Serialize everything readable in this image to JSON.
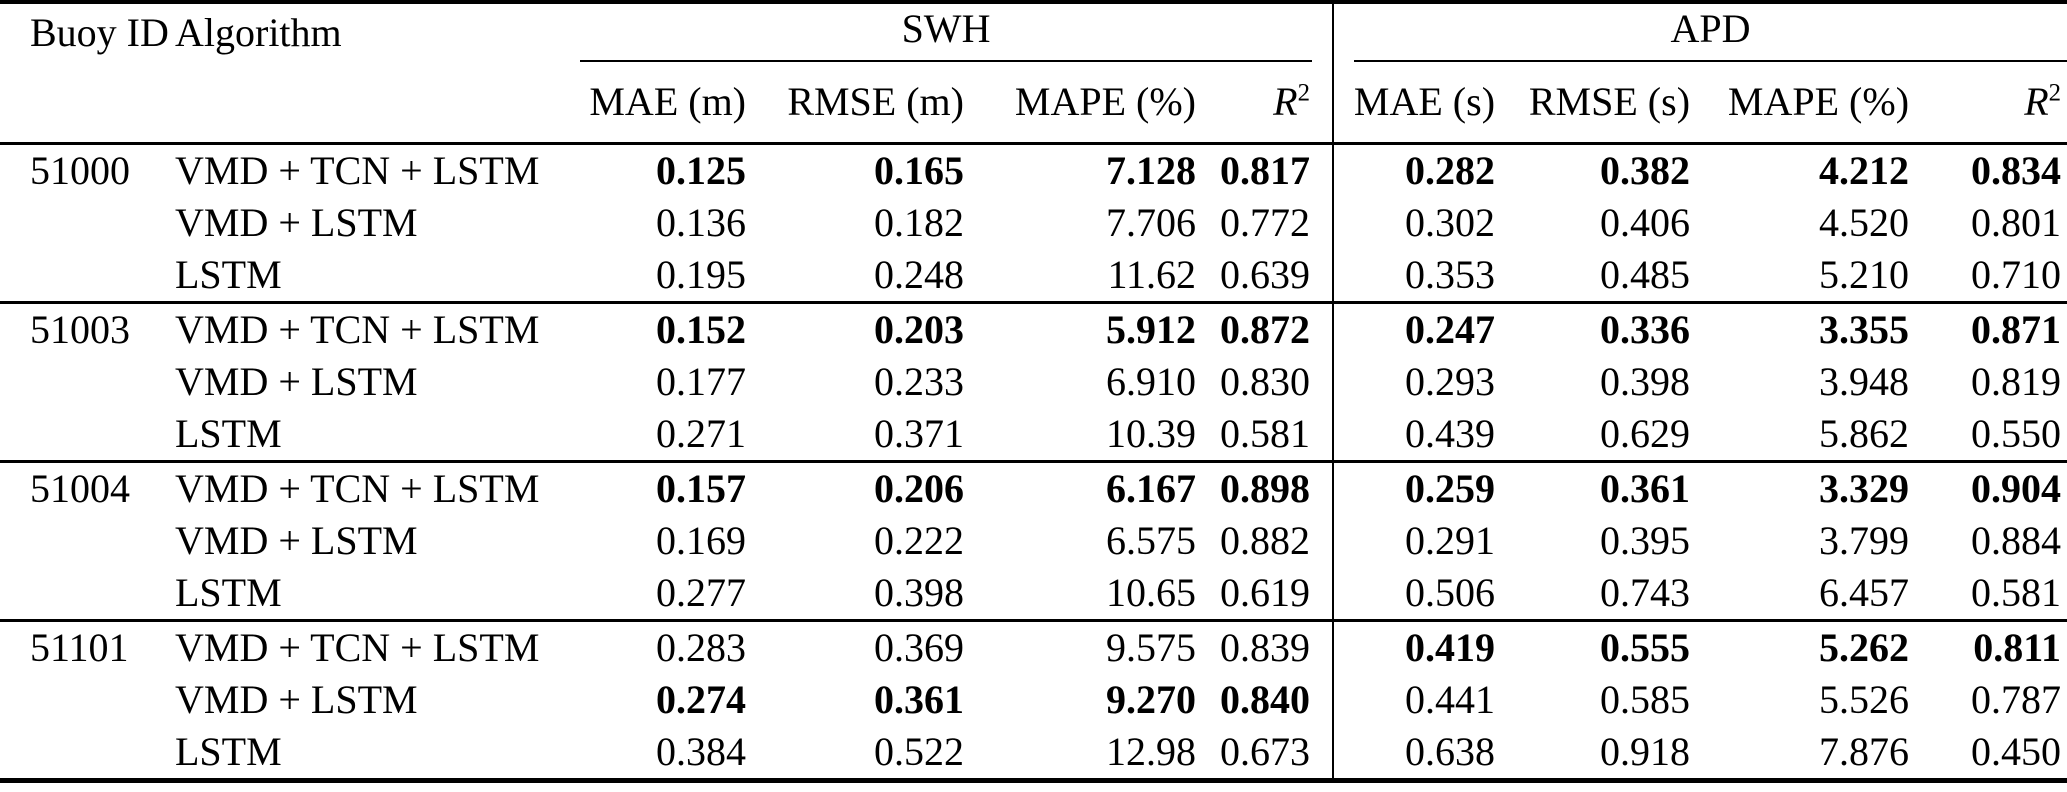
{
  "table": {
    "header": {
      "buoy_id": "Buoy ID",
      "algorithm": "Algorithm",
      "swh_group": "SWH",
      "apd_group": "APD",
      "swh_cols": [
        "MAE (m)",
        "RMSE (m)",
        "MAPE (%)"
      ],
      "apd_cols": [
        "MAE (s)",
        "RMSE (s)",
        "MAPE (%)"
      ],
      "r2_base": "R",
      "r2_sup": "2"
    },
    "groups": [
      {
        "buoy_id": "51000",
        "rows": [
          {
            "algorithm": "VMD + TCN + LSTM",
            "values": [
              "0.125",
              "0.165",
              "7.128",
              "0.817",
              "0.282",
              "0.382",
              "4.212",
              "0.834"
            ],
            "bold": [
              true,
              true,
              true,
              true,
              true,
              true,
              true,
              true
            ]
          },
          {
            "algorithm": "VMD + LSTM",
            "values": [
              "0.136",
              "0.182",
              "7.706",
              "0.772",
              "0.302",
              "0.406",
              "4.520",
              "0.801"
            ],
            "bold": [
              false,
              false,
              false,
              false,
              false,
              false,
              false,
              false
            ]
          },
          {
            "algorithm": "LSTM",
            "values": [
              "0.195",
              "0.248",
              "11.62",
              "0.639",
              "0.353",
              "0.485",
              "5.210",
              "0.710"
            ],
            "bold": [
              false,
              false,
              false,
              false,
              false,
              false,
              false,
              false
            ]
          }
        ]
      },
      {
        "buoy_id": "51003",
        "rows": [
          {
            "algorithm": "VMD + TCN + LSTM",
            "values": [
              "0.152",
              "0.203",
              "5.912",
              "0.872",
              "0.247",
              "0.336",
              "3.355",
              "0.871"
            ],
            "bold": [
              true,
              true,
              true,
              true,
              true,
              true,
              true,
              true
            ]
          },
          {
            "algorithm": "VMD + LSTM",
            "values": [
              "0.177",
              "0.233",
              "6.910",
              "0.830",
              "0.293",
              "0.398",
              "3.948",
              "0.819"
            ],
            "bold": [
              false,
              false,
              false,
              false,
              false,
              false,
              false,
              false
            ]
          },
          {
            "algorithm": "LSTM",
            "values": [
              "0.271",
              "0.371",
              "10.39",
              "0.581",
              "0.439",
              "0.629",
              "5.862",
              "0.550"
            ],
            "bold": [
              false,
              false,
              false,
              false,
              false,
              false,
              false,
              false
            ]
          }
        ]
      },
      {
        "buoy_id": "51004",
        "rows": [
          {
            "algorithm": "VMD + TCN + LSTM",
            "values": [
              "0.157",
              "0.206",
              "6.167",
              "0.898",
              "0.259",
              "0.361",
              "3.329",
              "0.904"
            ],
            "bold": [
              true,
              true,
              true,
              true,
              true,
              true,
              true,
              true
            ]
          },
          {
            "algorithm": "VMD + LSTM",
            "values": [
              "0.169",
              "0.222",
              "6.575",
              "0.882",
              "0.291",
              "0.395",
              "3.799",
              "0.884"
            ],
            "bold": [
              false,
              false,
              false,
              false,
              false,
              false,
              false,
              false
            ]
          },
          {
            "algorithm": "LSTM",
            "values": [
              "0.277",
              "0.398",
              "10.65",
              "0.619",
              "0.506",
              "0.743",
              "6.457",
              "0.581"
            ],
            "bold": [
              false,
              false,
              false,
              false,
              false,
              false,
              false,
              false
            ]
          }
        ]
      },
      {
        "buoy_id": "51101",
        "rows": [
          {
            "algorithm": "VMD + TCN + LSTM",
            "values": [
              "0.283",
              "0.369",
              "9.575",
              "0.839",
              "0.419",
              "0.555",
              "5.262",
              "0.811"
            ],
            "bold": [
              false,
              false,
              false,
              false,
              true,
              true,
              true,
              true
            ]
          },
          {
            "algorithm": "VMD + LSTM",
            "values": [
              "0.274",
              "0.361",
              "9.270",
              "0.840",
              "0.441",
              "0.585",
              "5.526",
              "0.787"
            ],
            "bold": [
              true,
              true,
              true,
              true,
              false,
              false,
              false,
              false
            ]
          },
          {
            "algorithm": "LSTM",
            "values": [
              "0.384",
              "0.522",
              "12.98",
              "0.673",
              "0.638",
              "0.918",
              "7.876",
              "0.450"
            ],
            "bold": [
              false,
              false,
              false,
              false,
              false,
              false,
              false,
              false
            ]
          }
        ]
      }
    ]
  }
}
